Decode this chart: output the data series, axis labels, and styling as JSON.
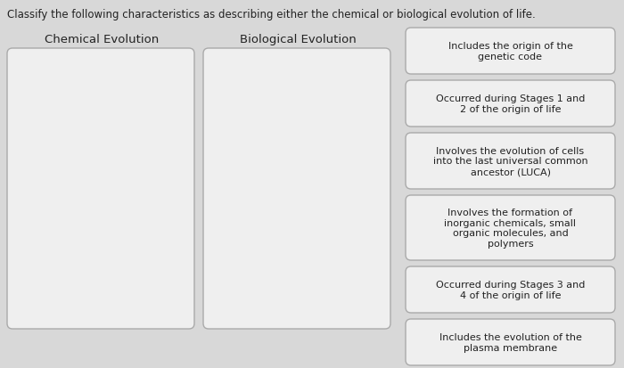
{
  "title": "Classify the following characteristics as describing either the chemical or biological evolution of life.",
  "col1_label": "Chemical Evolution",
  "col2_label": "Biological Evolution",
  "box_items": [
    "Includes the origin of the\ngenetic code",
    "Occurred during Stages 1 and\n2 of the origin of life",
    "Involves the evolution of cells\ninto the last universal common\nancestor (LUCA)",
    "Involves the formation of\ninorganic chemicals, small\norganic molecules, and\npolymers",
    "Occurred during Stages 3 and\n4 of the origin of life",
    "Includes the evolution of the\nplasma membrane"
  ],
  "background_color": "#d8d8d8",
  "box_fill": "#efefef",
  "box_edge": "#aaaaaa",
  "title_fontsize": 8.5,
  "label_fontsize": 9.5,
  "item_fontsize": 8
}
